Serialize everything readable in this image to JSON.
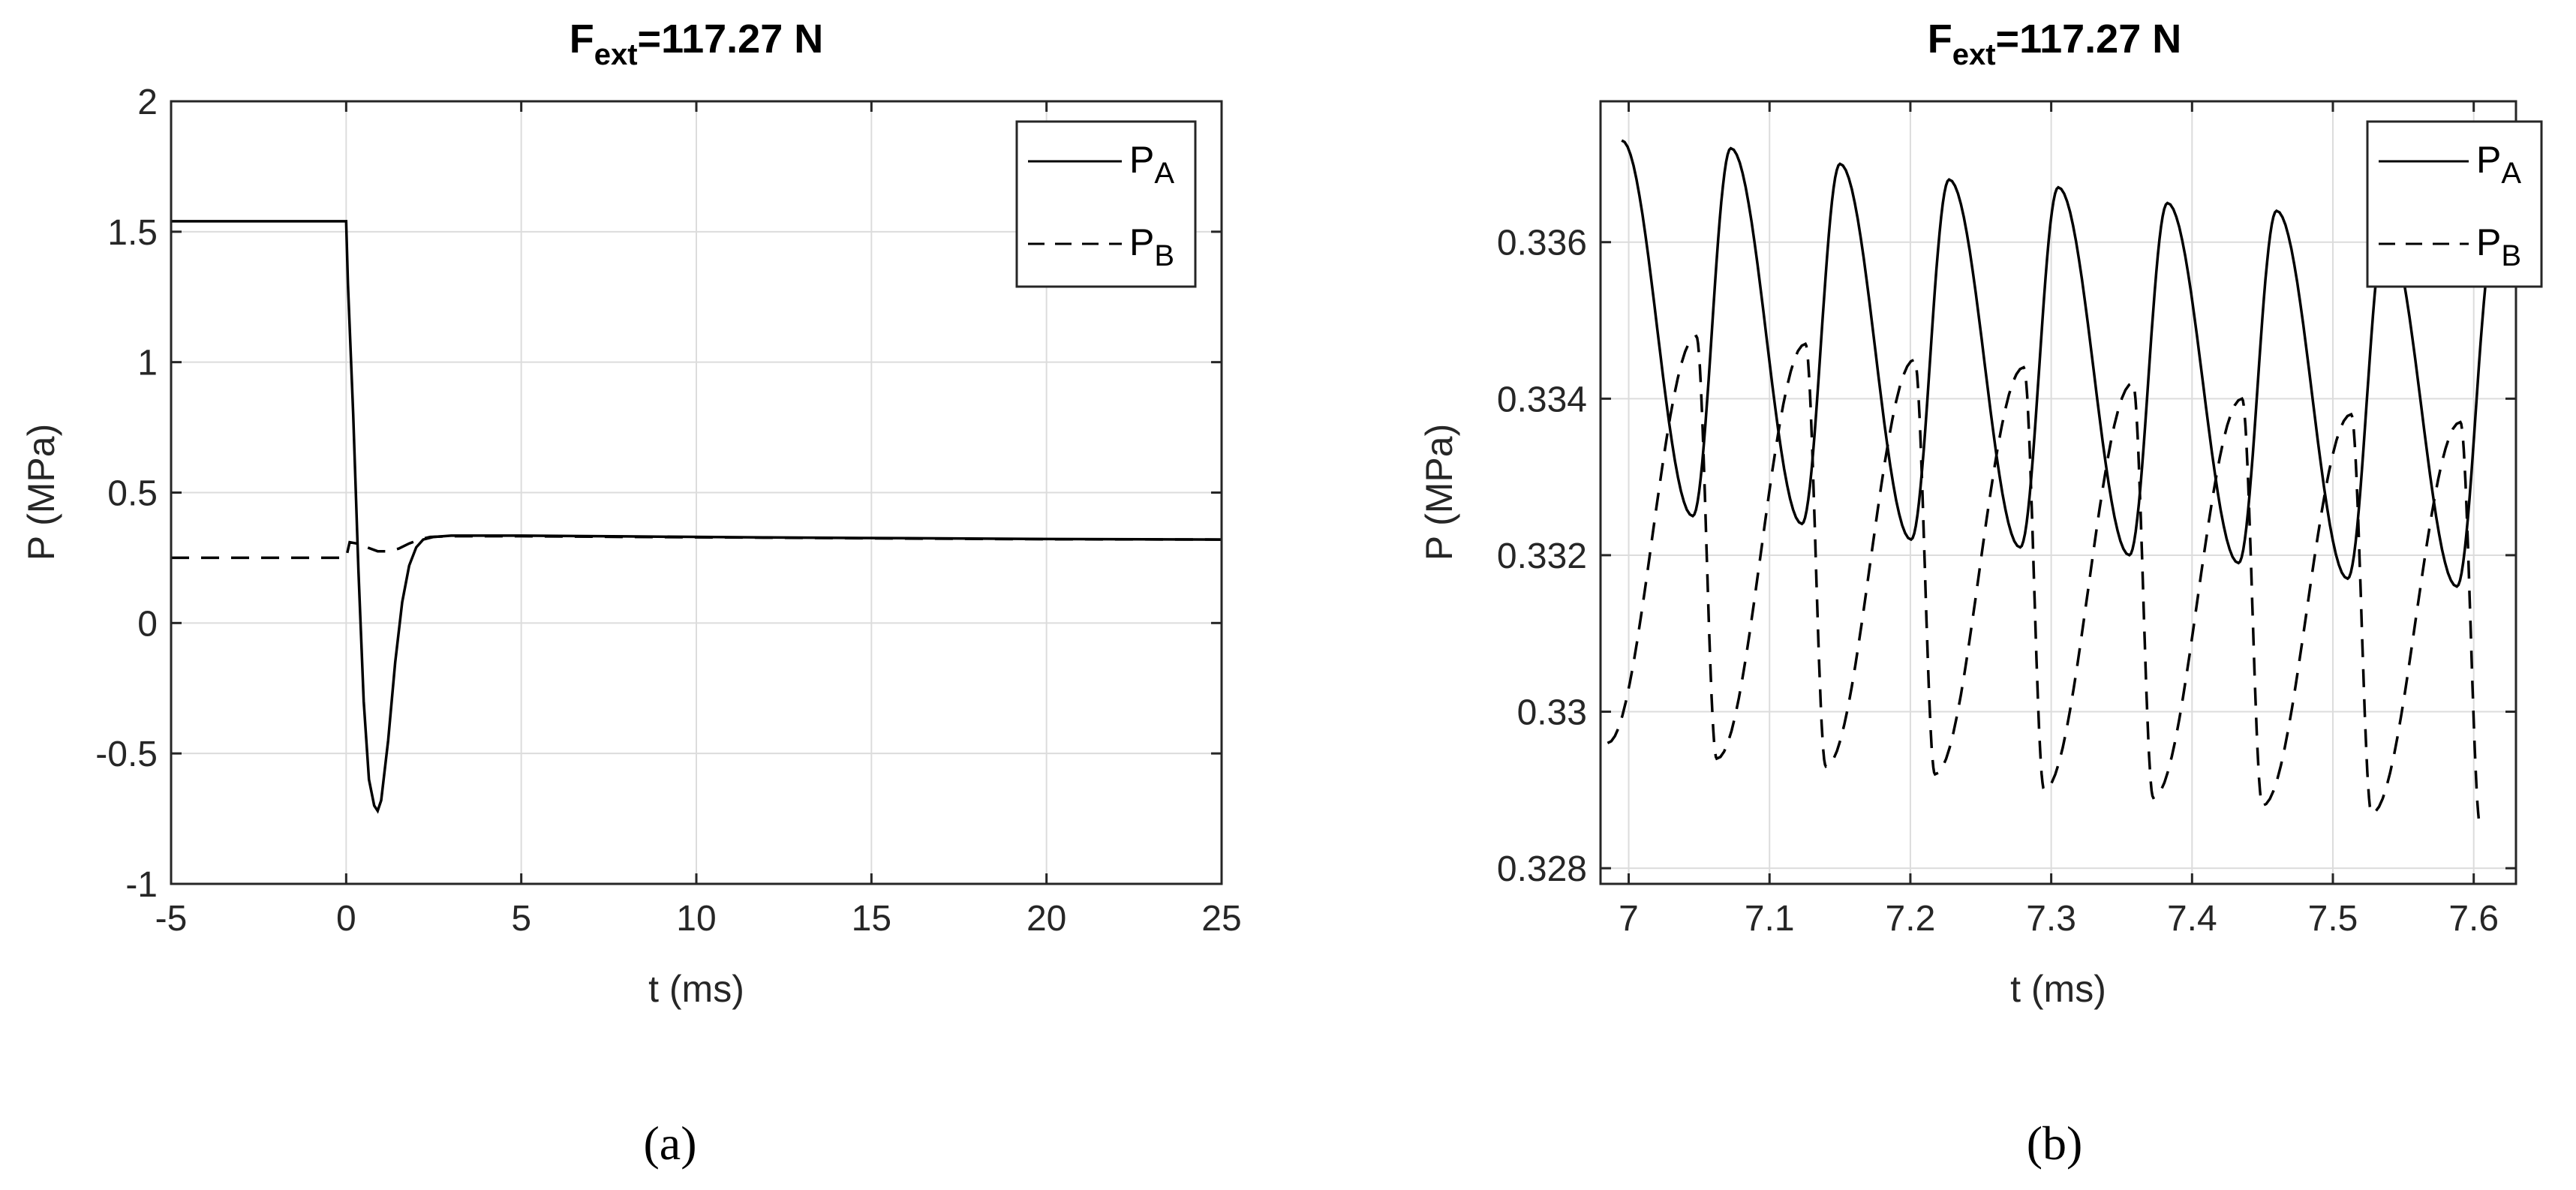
{
  "chart_data": [
    {
      "type": "line",
      "panel_label": "(a)",
      "title": {
        "base": "F",
        "sub": "ext",
        "rest": "=117.27 N"
      },
      "xlabel": "t (ms)",
      "ylabel": "P (MPa)",
      "xlim": [
        -5,
        25
      ],
      "ylim": [
        -1,
        2
      ],
      "xticks": [
        -5,
        0,
        5,
        10,
        15,
        20,
        25
      ],
      "yticks": [
        -1,
        -0.5,
        0,
        0.5,
        1,
        1.5,
        2
      ],
      "xtick_labels": [
        "-5",
        "0",
        "5",
        "10",
        "15",
        "20",
        "25"
      ],
      "ytick_labels": [
        "-1",
        "-0.5",
        "0",
        "0.5",
        "1",
        "1.5",
        "2"
      ],
      "grid": true,
      "legend_position": "top-right",
      "series": [
        {
          "name": "P_A",
          "label_base": "P",
          "label_sub": "A",
          "style": "solid",
          "color": "#000000",
          "x": [
            -5,
            0,
            0.05,
            0.2,
            0.35,
            0.5,
            0.65,
            0.8,
            0.9,
            1.0,
            1.2,
            1.4,
            1.6,
            1.8,
            2.0,
            2.2,
            2.5,
            3,
            4,
            5,
            8,
            12,
            16,
            20,
            25
          ],
          "y": [
            1.54,
            1.54,
            1.3,
            0.8,
            0.2,
            -0.3,
            -0.6,
            -0.7,
            -0.72,
            -0.68,
            -0.45,
            -0.15,
            0.08,
            0.22,
            0.29,
            0.32,
            0.33,
            0.335,
            0.335,
            0.335,
            0.332,
            0.328,
            0.325,
            0.322,
            0.32
          ]
        },
        {
          "name": "P_B",
          "label_base": "P",
          "label_sub": "B",
          "style": "dashed",
          "color": "#000000",
          "x": [
            -5,
            0,
            0.1,
            0.3,
            0.6,
            0.9,
            1.2,
            1.5,
            1.8,
            2.1,
            2.4,
            3,
            4,
            5,
            8,
            12,
            16,
            20,
            25
          ],
          "y": [
            0.25,
            0.25,
            0.31,
            0.305,
            0.29,
            0.275,
            0.275,
            0.285,
            0.305,
            0.32,
            0.33,
            0.333,
            0.333,
            0.333,
            0.33,
            0.327,
            0.324,
            0.321,
            0.32
          ]
        }
      ]
    },
    {
      "type": "line",
      "panel_label": "(b)",
      "title": {
        "base": "F",
        "sub": "ext",
        "rest": "=117.27 N"
      },
      "xlabel": "t (ms)",
      "ylabel": "P (MPa)",
      "xlim": [
        6.98,
        7.63
      ],
      "ylim": [
        0.3278,
        0.3378
      ],
      "xticks": [
        7,
        7.1,
        7.2,
        7.3,
        7.4,
        7.5,
        7.6
      ],
      "yticks": [
        0.328,
        0.33,
        0.332,
        0.334,
        0.336
      ],
      "xtick_labels": [
        "7",
        "7.1",
        "7.2",
        "7.3",
        "7.4",
        "7.5",
        "7.6"
      ],
      "ytick_labels": [
        "0.328",
        "0.33",
        "0.332",
        "0.334",
        "0.336"
      ],
      "grid": true,
      "legend_position": "top-right",
      "oscillation": {
        "period": 0.0775,
        "P_A_peak_t": [
          6.995,
          7.0725,
          7.15,
          7.2275,
          7.305,
          7.3825,
          7.46,
          7.5375,
          7.615
        ],
        "P_A_peak_v": [
          0.3373,
          0.3372,
          0.337,
          0.3368,
          0.3367,
          0.3365,
          0.3364,
          0.3362,
          0.3361
        ],
        "P_A_trough_t": [
          7.0455,
          7.123,
          7.2005,
          7.278,
          7.3555,
          7.433,
          7.5105,
          7.588
        ],
        "P_A_trough_v": [
          0.3325,
          0.3324,
          0.3322,
          0.3321,
          0.332,
          0.3319,
          0.3317,
          0.3316
        ],
        "P_B_peak_t": [
          7.048,
          7.1255,
          7.203,
          7.2805,
          7.358,
          7.4355,
          7.513,
          7.5905
        ],
        "P_B_peak_v": [
          0.3348,
          0.3347,
          0.3345,
          0.3344,
          0.3342,
          0.334,
          0.3338,
          0.3337
        ],
        "P_B_trough_t": [
          6.985,
          7.0625,
          7.14,
          7.2175,
          7.295,
          7.3725,
          7.45,
          7.5275,
          7.605
        ],
        "P_B_trough_v": [
          0.3296,
          0.3294,
          0.3293,
          0.3292,
          0.329,
          0.3289,
          0.3288,
          0.3287,
          0.3285
        ]
      },
      "series": [
        {
          "name": "P_A",
          "label_base": "P",
          "label_sub": "A",
          "style": "solid",
          "color": "#000000"
        },
        {
          "name": "P_B",
          "label_base": "P",
          "label_sub": "B",
          "style": "dashed",
          "color": "#000000"
        }
      ]
    }
  ]
}
